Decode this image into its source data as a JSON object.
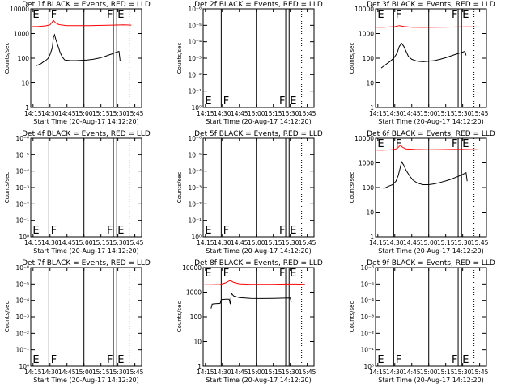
{
  "chart_data": [
    {
      "type": "line",
      "title": "Det 1f BLACK = Events, RED = LLD",
      "ylabel": "Counts/sec",
      "xlabel": "Start Time (20-Aug-17 14:12:20)",
      "x_tick_labels": [
        "14:15",
        "14:30",
        "14:45",
        "15:00",
        "15:15",
        "15:30",
        "15:45"
      ],
      "y_tick_labels": [
        "1",
        "10",
        "100",
        "1000",
        "10000"
      ],
      "ylim": [
        1,
        10000
      ],
      "yscale": "log",
      "markers": [
        {
          "label": "E",
          "time": "14:14"
        },
        {
          "label": "F",
          "time": "14:30"
        },
        {
          "label": "F",
          "time": "15:26"
        },
        {
          "label": "E",
          "time": "15:29"
        }
      ],
      "solid_lines": [
        "14:29",
        "15:00",
        "15:26",
        "15:29"
      ],
      "dotted_lines": [
        "15:40"
      ],
      "series": [
        {
          "color": "#000000",
          "points": [
            [
              "14:18",
              50
            ],
            [
              "14:22",
              60
            ],
            [
              "14:24",
              70
            ],
            [
              "14:26",
              80
            ],
            [
              "14:28",
              95
            ],
            [
              "14:30",
              140
            ],
            [
              "14:32",
              260
            ],
            [
              "14:33",
              700
            ],
            [
              "14:34",
              900
            ],
            [
              "14:35",
              600
            ],
            [
              "14:37",
              320
            ],
            [
              "14:39",
              170
            ],
            [
              "14:41",
              110
            ],
            [
              "14:43",
              85
            ],
            [
              "14:48",
              80
            ],
            [
              "14:53",
              80
            ],
            [
              "14:58",
              82
            ],
            [
              "15:03",
              85
            ],
            [
              "15:08",
              90
            ],
            [
              "15:13",
              100
            ],
            [
              "15:18",
              115
            ],
            [
              "15:22",
              135
            ],
            [
              "15:25",
              150
            ],
            [
              "15:28",
              170
            ],
            [
              "15:31",
              190
            ],
            [
              "15:32",
              80
            ]
          ]
        },
        {
          "color": "#ff0000",
          "points": [
            [
              "14:14",
              1900
            ],
            [
              "14:20",
              1950
            ],
            [
              "14:26",
              2050
            ],
            [
              "14:30",
              2250
            ],
            [
              "14:33",
              3400
            ],
            [
              "14:35",
              2700
            ],
            [
              "14:38",
              2300
            ],
            [
              "14:45",
              2100
            ],
            [
              "14:55",
              2080
            ],
            [
              "15:05",
              2100
            ],
            [
              "15:15",
              2150
            ],
            [
              "15:25",
              2200
            ],
            [
              "15:35",
              2250
            ],
            [
              "15:42",
              2200
            ]
          ]
        }
      ]
    },
    {
      "type": "line",
      "title": "Det 2f BLACK = Events, RED = LLD",
      "ylabel": "Counts/sec",
      "xlabel": "Start Time (20-Aug-17 14:12:20)",
      "x_tick_labels": [
        "14:15",
        "14:30",
        "14:45",
        "15:00",
        "15:15",
        "15:30",
        "15:45"
      ],
      "y_tick_labels": [
        "10⁰",
        "10⁻¹",
        "10⁻²",
        "10⁻³",
        "10⁻⁴",
        "10⁻⁵",
        "10⁻⁶"
      ],
      "yscale": "log",
      "markers": [
        {
          "label": "E",
          "time": "14:14"
        },
        {
          "label": "F",
          "time": "14:30"
        },
        {
          "label": "F",
          "time": "15:26"
        },
        {
          "label": "E",
          "time": "15:29"
        }
      ],
      "solid_lines": [
        "14:29",
        "15:00",
        "15:26",
        "15:29"
      ],
      "dotted_lines": [
        "15:40"
      ],
      "series": []
    },
    {
      "type": "line",
      "title": "Det 3f BLACK = Events, RED = LLD",
      "ylabel": "Counts/sec",
      "xlabel": "Start Time (20-Aug-17 14:12:20)",
      "x_tick_labels": [
        "14:15",
        "14:30",
        "14:45",
        "15:00",
        "15:15",
        "15:30",
        "15:45"
      ],
      "y_tick_labels": [
        "1",
        "10",
        "100",
        "1000",
        "10000"
      ],
      "ylim": [
        1,
        10000
      ],
      "yscale": "log",
      "markers": [
        {
          "label": "E",
          "time": "14:14"
        },
        {
          "label": "F",
          "time": "14:30"
        },
        {
          "label": "F",
          "time": "15:26"
        },
        {
          "label": "E",
          "time": "15:29"
        }
      ],
      "solid_lines": [
        "14:29",
        "15:00",
        "15:26",
        "15:29"
      ],
      "dotted_lines": [
        "15:40"
      ],
      "series": [
        {
          "color": "#000000",
          "points": [
            [
              "14:18",
              40
            ],
            [
              "14:22",
              55
            ],
            [
              "14:26",
              75
            ],
            [
              "14:29",
              100
            ],
            [
              "14:32",
              160
            ],
            [
              "14:34",
              300
            ],
            [
              "14:36",
              400
            ],
            [
              "14:38",
              300
            ],
            [
              "14:40",
              190
            ],
            [
              "14:42",
              120
            ],
            [
              "14:45",
              90
            ],
            [
              "14:50",
              75
            ],
            [
              "14:55",
              72
            ],
            [
              "15:00",
              75
            ],
            [
              "15:05",
              80
            ],
            [
              "15:10",
              90
            ],
            [
              "15:15",
              105
            ],
            [
              "15:20",
              125
            ],
            [
              "15:25",
              150
            ],
            [
              "15:29",
              170
            ],
            [
              "15:32",
              190
            ],
            [
              "15:33",
              130
            ]
          ]
        },
        {
          "color": "#ff0000",
          "points": [
            [
              "14:14",
              1800
            ],
            [
              "14:20",
              1800
            ],
            [
              "14:30",
              1900
            ],
            [
              "14:34",
              2100
            ],
            [
              "14:38",
              1950
            ],
            [
              "14:45",
              1800
            ],
            [
              "14:55",
              1780
            ],
            [
              "15:05",
              1800
            ],
            [
              "15:15",
              1820
            ],
            [
              "15:25",
              1850
            ],
            [
              "15:35",
              1870
            ],
            [
              "15:42",
              1850
            ]
          ]
        }
      ]
    },
    {
      "type": "line",
      "title": "Det 4f BLACK = Events, RED = LLD",
      "ylabel": "Counts/sec",
      "xlabel": "Start Time (20-Aug-17 14:12:20)",
      "x_tick_labels": [
        "14:15",
        "14:30",
        "14:45",
        "15:00",
        "15:15",
        "15:30",
        "15:45"
      ],
      "y_tick_labels": [
        "10⁰",
        "10⁻¹",
        "10⁻²",
        "10⁻³",
        "10⁻⁴",
        "10⁻⁵",
        "10⁻⁶"
      ],
      "yscale": "log",
      "markers": [
        {
          "label": "E",
          "time": "14:14"
        },
        {
          "label": "F",
          "time": "14:30"
        },
        {
          "label": "F",
          "time": "15:26"
        },
        {
          "label": "E",
          "time": "15:29"
        }
      ],
      "solid_lines": [
        "14:29",
        "15:00",
        "15:26",
        "15:29"
      ],
      "dotted_lines": [
        "15:40"
      ],
      "series": []
    },
    {
      "type": "line",
      "title": "Det 5f BLACK = Events, RED = LLD",
      "ylabel": "Counts/sec",
      "xlabel": "Start Time (20-Aug-17 14:12:20)",
      "x_tick_labels": [
        "14:15",
        "14:30",
        "14:45",
        "15:00",
        "15:15",
        "15:30",
        "15:45"
      ],
      "y_tick_labels": [
        "10⁰",
        "10⁻¹",
        "10⁻²",
        "10⁻³",
        "10⁻⁴",
        "10⁻⁵",
        "10⁻⁶"
      ],
      "yscale": "log",
      "markers": [
        {
          "label": "E",
          "time": "14:14"
        },
        {
          "label": "F",
          "time": "14:30"
        },
        {
          "label": "F",
          "time": "15:26"
        },
        {
          "label": "E",
          "time": "15:29"
        }
      ],
      "solid_lines": [
        "14:29",
        "15:00",
        "15:26",
        "15:29"
      ],
      "dotted_lines": [
        "15:40"
      ],
      "series": []
    },
    {
      "type": "line",
      "title": "Det 6f BLACK = Events, RED = LLD",
      "ylabel": "Counts/sec",
      "xlabel": "Start Time (20-Aug-17 14:12:20)",
      "x_tick_labels": [
        "14:15",
        "14:30",
        "14:45",
        "15:00",
        "15:15",
        "15:30",
        "15:45"
      ],
      "y_tick_labels": [
        "1",
        "10",
        "100",
        "1000",
        "10000"
      ],
      "ylim": [
        1,
        10000
      ],
      "yscale": "log",
      "markers": [
        {
          "label": "E",
          "time": "14:14"
        },
        {
          "label": "F",
          "time": "14:30"
        },
        {
          "label": "F",
          "time": "15:26"
        },
        {
          "label": "E",
          "time": "15:29"
        }
      ],
      "solid_lines": [
        "14:29",
        "15:00",
        "15:26",
        "15:29"
      ],
      "dotted_lines": [
        "15:40"
      ],
      "series": [
        {
          "color": "#000000",
          "points": [
            [
              "14:20",
              90
            ],
            [
              "14:24",
              110
            ],
            [
              "14:28",
              130
            ],
            [
              "14:31",
              180
            ],
            [
              "14:33",
              300
            ],
            [
              "14:35",
              700
            ],
            [
              "14:36",
              1100
            ],
            [
              "14:38",
              800
            ],
            [
              "14:40",
              500
            ],
            [
              "14:43",
              300
            ],
            [
              "14:46",
              200
            ],
            [
              "14:50",
              150
            ],
            [
              "14:55",
              130
            ],
            [
              "15:00",
              130
            ],
            [
              "15:05",
              140
            ],
            [
              "15:10",
              160
            ],
            [
              "15:15",
              185
            ],
            [
              "15:20",
              220
            ],
            [
              "15:25",
              270
            ],
            [
              "15:29",
              320
            ],
            [
              "15:33",
              400
            ],
            [
              "15:34",
              180
            ]
          ]
        },
        {
          "color": "#ff0000",
          "points": [
            [
              "14:14",
              3300
            ],
            [
              "14:20",
              3300
            ],
            [
              "14:28",
              3400
            ],
            [
              "14:32",
              3800
            ],
            [
              "14:35",
              5200
            ],
            [
              "14:37",
              4200
            ],
            [
              "14:40",
              3700
            ],
            [
              "14:48",
              3500
            ],
            [
              "15:00",
              3400
            ],
            [
              "15:10",
              3450
            ],
            [
              "15:20",
              3500
            ],
            [
              "15:30",
              3500
            ],
            [
              "15:38",
              3450
            ],
            [
              "15:43",
              3400
            ]
          ]
        }
      ]
    },
    {
      "type": "line",
      "title": "Det 7f BLACK = Events, RED = LLD",
      "ylabel": "Counts/sec",
      "xlabel": "Start Time (20-Aug-17 14:12:20)",
      "x_tick_labels": [
        "14:15",
        "14:30",
        "14:45",
        "15:00",
        "15:15",
        "15:30",
        "15:45"
      ],
      "y_tick_labels": [
        "10⁰",
        "10⁻¹",
        "10⁻²",
        "10⁻³",
        "10⁻⁴",
        "10⁻⁵",
        "10⁻⁶"
      ],
      "yscale": "log",
      "markers": [
        {
          "label": "E",
          "time": "14:14"
        },
        {
          "label": "F",
          "time": "14:30"
        },
        {
          "label": "F",
          "time": "15:26"
        },
        {
          "label": "E",
          "time": "15:29"
        }
      ],
      "solid_lines": [
        "14:29",
        "15:00",
        "15:26",
        "15:29"
      ],
      "dotted_lines": [
        "15:40"
      ],
      "series": []
    },
    {
      "type": "line",
      "title": "Det 8f BLACK = Events, RED = LLD",
      "ylabel": "Counts/sec",
      "xlabel": "Start Time (20-Aug-17 14:12:20)",
      "x_tick_labels": [
        "14:15",
        "14:30",
        "14:45",
        "15:00",
        "15:15",
        "15:30",
        "15:45"
      ],
      "y_tick_labels": [
        "1",
        "10",
        "100",
        "1000",
        "10000"
      ],
      "ylim": [
        1,
        10000
      ],
      "yscale": "log",
      "markers": [
        {
          "label": "E",
          "time": "14:14"
        },
        {
          "label": "F",
          "time": "14:30"
        },
        {
          "label": "F",
          "time": "15:26"
        },
        {
          "label": "E",
          "time": "15:29"
        }
      ],
      "solid_lines": [
        "14:29",
        "15:00",
        "15:26",
        "15:29"
      ],
      "dotted_lines": [
        "15:40"
      ],
      "series": [
        {
          "color": "#000000",
          "points": [
            [
              "14:20",
              220
            ],
            [
              "14:21",
              330
            ],
            [
              "14:24",
              340
            ],
            [
              "14:28",
              350
            ],
            [
              "14:29",
              500
            ],
            [
              "14:33",
              520
            ],
            [
              "14:36",
              520
            ],
            [
              "14:37",
              330
            ],
            [
              "14:38",
              900
            ],
            [
              "14:40",
              700
            ],
            [
              "14:45",
              600
            ],
            [
              "14:55",
              560
            ],
            [
              "15:05",
              550
            ],
            [
              "15:15",
              560
            ],
            [
              "15:25",
              570
            ],
            [
              "15:30",
              580
            ],
            [
              "15:31",
              400
            ]
          ]
        },
        {
          "color": "#ff0000",
          "points": [
            [
              "14:14",
              2000
            ],
            [
              "14:20",
              2000
            ],
            [
              "14:28",
              2050
            ],
            [
              "14:33",
              2400
            ],
            [
              "14:37",
              3000
            ],
            [
              "14:40",
              2500
            ],
            [
              "14:45",
              2200
            ],
            [
              "14:55",
              2100
            ],
            [
              "15:05",
              2100
            ],
            [
              "15:15",
              2100
            ],
            [
              "15:25",
              2150
            ],
            [
              "15:35",
              2150
            ],
            [
              "15:43",
              2100
            ]
          ]
        }
      ]
    },
    {
      "type": "line",
      "title": "Det 9f BLACK = Events, RED = LLD",
      "ylabel": "Counts/sec",
      "xlabel": "Start Time (20-Aug-17 14:12:20)",
      "x_tick_labels": [
        "14:15",
        "14:30",
        "14:45",
        "15:00",
        "15:15",
        "15:30",
        "15:45"
      ],
      "y_tick_labels": [
        "10⁰",
        "10⁻¹",
        "10⁻²",
        "10⁻³",
        "10⁻⁴",
        "10⁻⁵",
        "10⁻⁶"
      ],
      "yscale": "log",
      "markers": [
        {
          "label": "E",
          "time": "14:14"
        },
        {
          "label": "F",
          "time": "14:30"
        },
        {
          "label": "F",
          "time": "15:26"
        },
        {
          "label": "E",
          "time": "15:29"
        }
      ],
      "solid_lines": [
        "14:29",
        "15:00",
        "15:26",
        "15:29"
      ],
      "dotted_lines": [
        "15:40"
      ],
      "series": []
    }
  ]
}
